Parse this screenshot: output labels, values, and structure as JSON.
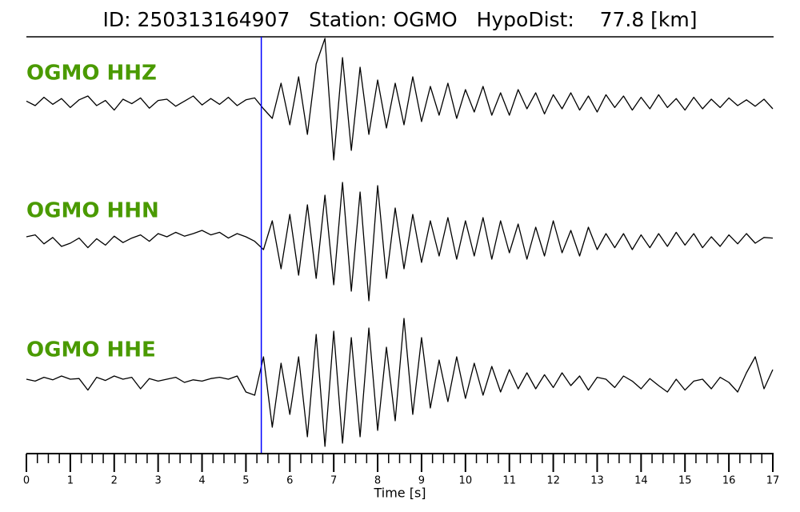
{
  "chart_data": {
    "type": "line",
    "title": "ID: 250313164907   Station: OGMO   HypoDist:    77.8 [km]",
    "xlabel": "Time [s]",
    "xlim": [
      0,
      17
    ],
    "xticks": [
      0,
      1,
      2,
      3,
      4,
      5,
      6,
      7,
      8,
      9,
      10,
      11,
      12,
      13,
      14,
      15,
      16,
      17
    ],
    "minor_ticks_per_interval": 4,
    "ylim": [
      -1,
      1
    ],
    "label_color": "#4a9a00",
    "pick": {
      "x": 5.35,
      "color": "#0000ff"
    },
    "x": [
      0,
      0.2,
      0.4,
      0.6,
      0.8,
      1,
      1.2,
      1.4,
      1.6,
      1.8,
      2,
      2.2,
      2.4,
      2.6,
      2.8,
      3,
      3.2,
      3.4,
      3.6,
      3.8,
      4,
      4.2,
      4.4,
      4.6,
      4.8,
      5,
      5.2,
      5.4,
      5.6,
      5.8,
      6,
      6.2,
      6.4,
      6.6,
      6.8,
      7,
      7.2,
      7.4,
      7.6,
      7.8,
      8,
      8.2,
      8.4,
      8.6,
      8.8,
      9,
      9.2,
      9.4,
      9.6,
      9.8,
      10,
      10.2,
      10.4,
      10.6,
      10.8,
      11,
      11.2,
      11.4,
      11.6,
      11.8,
      12,
      12.2,
      12.4,
      12.6,
      12.8,
      13,
      13.2,
      13.4,
      13.6,
      13.8,
      14,
      14.2,
      14.4,
      14.6,
      14.8,
      15,
      15.2,
      15.4,
      15.6,
      15.8,
      16,
      16.2,
      16.4,
      16.6,
      16.8,
      17
    ],
    "series": [
      {
        "name": "OGMO HHZ",
        "color": "#000000",
        "values": [
          0.02,
          -0.05,
          0.08,
          -0.03,
          0.06,
          -0.08,
          0.04,
          0.1,
          -0.05,
          0.03,
          -0.12,
          0.05,
          -0.02,
          0.07,
          -0.09,
          0.03,
          0.05,
          -0.06,
          0.02,
          0.1,
          -0.04,
          0.06,
          -0.03,
          0.08,
          -0.05,
          0.04,
          0.07,
          -0.1,
          -0.25,
          0.3,
          -0.35,
          0.4,
          -0.5,
          0.6,
          1.0,
          -0.9,
          0.7,
          -0.75,
          0.55,
          -0.5,
          0.35,
          -0.4,
          0.3,
          -0.35,
          0.4,
          -0.3,
          0.25,
          -0.2,
          0.3,
          -0.25,
          0.2,
          -0.15,
          0.25,
          -0.2,
          0.15,
          -0.2,
          0.2,
          -0.1,
          0.15,
          -0.18,
          0.12,
          -0.1,
          0.15,
          -0.12,
          0.1,
          -0.15,
          0.12,
          -0.08,
          0.1,
          -0.12,
          0.08,
          -0.1,
          0.12,
          -0.08,
          0.06,
          -0.12,
          0.08,
          -0.1,
          0.05,
          -0.08,
          0.07,
          -0.05,
          0.04,
          -0.06,
          0.05,
          -0.1
        ]
      },
      {
        "name": "OGMO HHN",
        "color": "#000000",
        "values": [
          0.05,
          0.08,
          -0.06,
          0.04,
          -0.1,
          -0.05,
          0.03,
          -0.12,
          0.02,
          -0.08,
          0.06,
          -0.04,
          0.03,
          0.08,
          -0.02,
          0.1,
          0.05,
          0.12,
          0.06,
          0.1,
          0.15,
          0.08,
          0.12,
          0.03,
          0.1,
          0.05,
          -0.02,
          -0.15,
          0.3,
          -0.45,
          0.4,
          -0.55,
          0.55,
          -0.6,
          0.7,
          -0.7,
          0.9,
          -0.8,
          0.75,
          -0.95,
          0.85,
          -0.6,
          0.5,
          -0.45,
          0.4,
          -0.35,
          0.3,
          -0.25,
          0.35,
          -0.3,
          0.3,
          -0.25,
          0.35,
          -0.3,
          0.3,
          -0.2,
          0.25,
          -0.3,
          0.2,
          -0.25,
          0.3,
          -0.2,
          0.15,
          -0.25,
          0.2,
          -0.15,
          0.1,
          -0.12,
          0.1,
          -0.15,
          0.08,
          -0.12,
          0.1,
          -0.1,
          0.12,
          -0.08,
          0.1,
          -0.12,
          0.05,
          -0.1,
          0.08,
          -0.06,
          0.1,
          -0.05,
          0.04,
          0.03
        ]
      },
      {
        "name": "OGMO HHE",
        "color": "#000000",
        "values": [
          0.05,
          0.02,
          0.08,
          0.04,
          0.1,
          0.05,
          0.06,
          -0.12,
          0.08,
          0.03,
          0.1,
          0.05,
          0.08,
          -0.1,
          0.06,
          0.02,
          0.05,
          0.08,
          0.0,
          0.04,
          0.02,
          0.06,
          0.08,
          0.05,
          0.1,
          -0.15,
          -0.2,
          0.4,
          -0.7,
          0.3,
          -0.5,
          0.4,
          -0.85,
          0.75,
          -1.0,
          0.8,
          -0.95,
          0.7,
          -0.85,
          0.85,
          -0.75,
          0.55,
          -0.6,
          1.0,
          -0.5,
          0.7,
          -0.4,
          0.35,
          -0.3,
          0.4,
          -0.25,
          0.3,
          -0.2,
          0.25,
          -0.15,
          0.2,
          -0.1,
          0.15,
          -0.1,
          0.12,
          -0.08,
          0.15,
          -0.05,
          0.1,
          -0.12,
          0.08,
          0.05,
          -0.08,
          0.1,
          0.02,
          -0.1,
          0.06,
          -0.05,
          -0.15,
          0.05,
          -0.12,
          0.02,
          0.05,
          -0.1,
          0.08,
          0.0,
          -0.15,
          0.15,
          0.4,
          -0.1,
          0.2
        ]
      }
    ]
  }
}
